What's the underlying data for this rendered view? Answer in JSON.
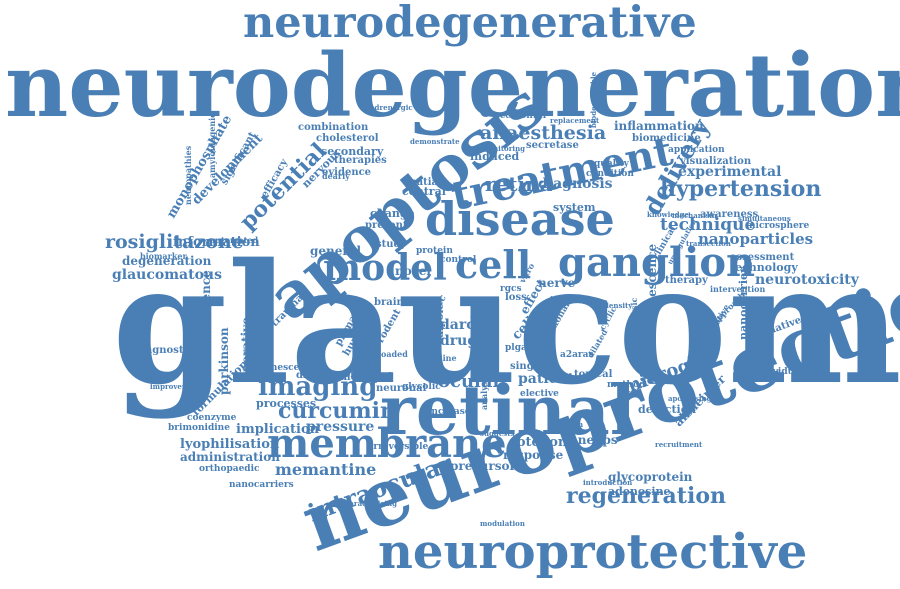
{
  "word_color": "#4a7fb5",
  "background": "#ffffff",
  "words": [
    "neurodegenerative",
    "neurodegeneration",
    "glaucoma",
    "neuroprotection",
    "neuroprotective",
    "apoptosis",
    "disease",
    "treatment",
    "retinal",
    "membrane",
    "ganglion",
    "cell",
    "model",
    "curcumin",
    "imaging",
    "intraocular",
    "regeneration",
    "anaesthesia",
    "hypertension",
    "nanoparticles",
    "delivery",
    "technique",
    "retina",
    "potential",
    "rosiglitazone",
    "microglia",
    "memantine",
    "ocular",
    "experimental",
    "inflammation",
    "diagnosis",
    "glaucomatous",
    "degeneration",
    "information",
    "development",
    "monophosphate",
    "neurotoxicity",
    "patient",
    "pressure",
    "rotenone",
    "precursor",
    "response",
    "implication",
    "lyophilisation",
    "administration",
    "glycoprotein",
    "adenosine",
    "detection",
    "science",
    "senescence",
    "technology",
    "assessment",
    "nanocarrier",
    "alzheimer",
    "parkinson",
    "fluorescence",
    "operative",
    "formulation",
    "processes",
    "drug",
    "darc",
    "cellular",
    "effect",
    "system",
    "nerve",
    "general",
    "novel",
    "secondary",
    "combination",
    "cholesterol",
    "significant",
    "efficacy",
    "nervous",
    "evidence",
    "therapies",
    "central",
    "change",
    "present",
    "study",
    "visualization",
    "biomedicine",
    "application",
    "awareness",
    "microsphere",
    "therapy",
    "individual",
    "oxidative",
    "topical",
    "single",
    "mediated",
    "neuronal",
    "biology",
    "disorder",
    "senescent",
    "irreversible",
    "anepps",
    "increase",
    "method",
    "orthopaedic",
    "nanocarriers",
    "brimonidine",
    "coenzyme",
    "diagnostic",
    "trauma",
    "biomarker",
    "amyloidogenic",
    "neuropathies",
    "automated",
    "induced",
    "secretase",
    "accidental",
    "demonstrate",
    "adrenergic",
    "replacement",
    "biodegradable",
    "monitoring",
    "spatial",
    "quality",
    "condition",
    "loss",
    "glycolic",
    "real",
    "note",
    "dipole",
    "optic",
    "rodent",
    "human",
    "studies",
    "primary",
    "brain",
    "protein",
    "control",
    "rgcs",
    "plga",
    "a2aras",
    "elective",
    "decline",
    "loaded",
    "improvement",
    "analysis",
    "intervention",
    "approach",
    "quantitative",
    "biophysic",
    "cyclic",
    "dilated",
    "axonal",
    "density",
    "vitro",
    "dearly",
    "upregulation",
    "transection",
    "clinical",
    "knowledge",
    "mechanism",
    "simultaneous",
    "apoptosing",
    "introduction",
    "characterising",
    "modulation",
    "recruitment",
    "suggests",
    "vision"
  ]
}
